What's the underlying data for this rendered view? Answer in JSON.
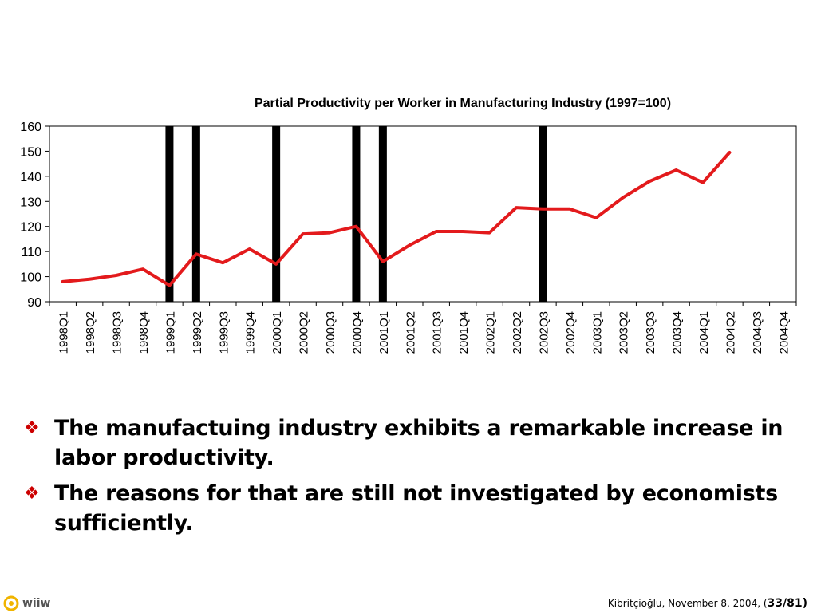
{
  "chart_data": {
    "type": "line",
    "title": "Partial Productivity per Worker in Manufacturing Industry (1997=100)",
    "xlabel": "",
    "ylabel": "",
    "ylim": [
      90,
      160
    ],
    "yticks": [
      90,
      100,
      110,
      120,
      130,
      140,
      150,
      160
    ],
    "categories": [
      "1998Q1",
      "1998Q2",
      "1998Q3",
      "1998Q4",
      "1999Q1",
      "1999Q2",
      "1999Q3",
      "1999Q4",
      "2000Q1",
      "2000Q2",
      "2000Q3",
      "2000Q4",
      "2001Q1",
      "2001Q2",
      "2001Q3",
      "2001Q4",
      "2002Q1",
      "2002Q2",
      "2002Q3",
      "2002Q4",
      "2003Q1",
      "2003Q2",
      "2003Q3",
      "2003Q4",
      "2004Q1",
      "2004Q2",
      "2004Q3",
      "2004Q4"
    ],
    "series": [
      {
        "color": "#e31a1c",
        "values": [
          98,
          99,
          100.5,
          103,
          96.5,
          109,
          105.5,
          111,
          105,
          117,
          117.5,
          120,
          106,
          112.5,
          118,
          118,
          117.5,
          127.5,
          127,
          127,
          123.5,
          131.5,
          138,
          142.5,
          137.5,
          149.5,
          null,
          null
        ]
      }
    ],
    "vertical_markers": [
      "1999Q1",
      "1999Q2",
      "2000Q1",
      "2000Q4",
      "2001Q1",
      "2002Q3"
    ],
    "marker_color": "#000000",
    "grid": false,
    "legend": "none"
  },
  "bullets": [
    "The manufactuing industry exhibits a remarkable increase in labor productivity.",
    "The reasons for that are still not investigated by economists sufficiently."
  ],
  "bullet_icon": "❖",
  "logo": {
    "text": "wiiw",
    "icon": "wiiw-logo-icon",
    "color": "#f0b400"
  },
  "footer": {
    "author_date": "Kibritçioğlu, November 8, 2004, (",
    "page": "33/81)"
  }
}
